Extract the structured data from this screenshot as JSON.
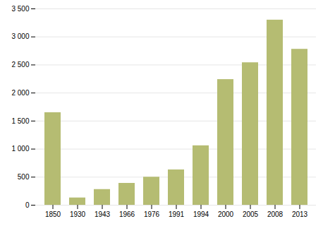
{
  "chart_data": {
    "type": "bar",
    "categories": [
      "1850",
      "1930",
      "1943",
      "1966",
      "1976",
      "1991",
      "1994",
      "2000",
      "2005",
      "2008",
      "2013"
    ],
    "values": [
      1650,
      130,
      280,
      390,
      500,
      630,
      1060,
      2240,
      2540,
      3300,
      2780
    ],
    "color": "#b5bc72",
    "ylim": [
      0,
      3500
    ],
    "yticks": [
      0,
      500,
      {
        "value": 1000,
        "label": "1 000"
      },
      {
        "value": 1500,
        "label": "1 500"
      },
      {
        "value": 2000,
        "label": "2 000"
      },
      {
        "value": 2500,
        "label": "2 500"
      },
      {
        "value": 3000,
        "label": "3 000"
      },
      {
        "value": 3500,
        "label": "3 500"
      }
    ],
    "grid": true
  }
}
